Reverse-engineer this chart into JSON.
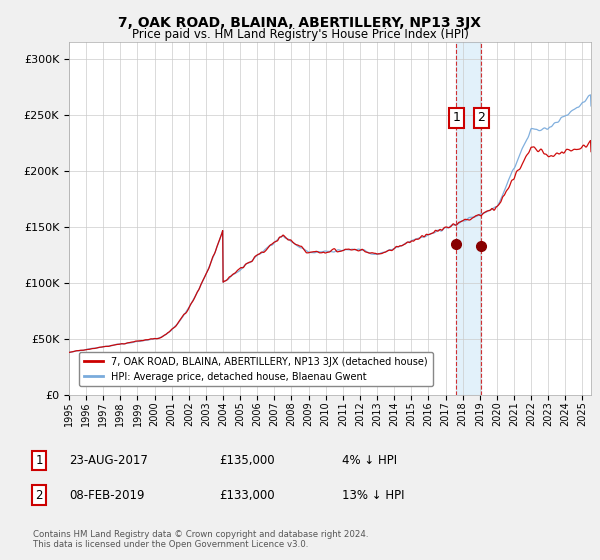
{
  "title": "7, OAK ROAD, BLAINA, ABERTILLERY, NP13 3JX",
  "subtitle": "Price paid vs. HM Land Registry's House Price Index (HPI)",
  "ytick_values": [
    0,
    50000,
    100000,
    150000,
    200000,
    250000,
    300000
  ],
  "ylim": [
    0,
    315000
  ],
  "xlim_start": 1995.0,
  "xlim_end": 2025.5,
  "sale1_date": 2017.64,
  "sale1_price": 135000,
  "sale1_label": "1",
  "sale1_hpi_diff": "4% ↓ HPI",
  "sale1_date_str": "23-AUG-2017",
  "sale2_date": 2019.1,
  "sale2_price": 133000,
  "sale2_label": "2",
  "sale2_hpi_diff": "13% ↓ HPI",
  "sale2_date_str": "08-FEB-2019",
  "line_color_red": "#cc0000",
  "line_color_blue": "#7aabdc",
  "legend_label_red": "7, OAK ROAD, BLAINA, ABERTILLERY, NP13 3JX (detached house)",
  "legend_label_blue": "HPI: Average price, detached house, Blaenau Gwent",
  "footnote1": "Contains HM Land Registry data © Crown copyright and database right 2024.",
  "footnote2": "This data is licensed under the Open Government Licence v3.0.",
  "background_color": "#f0f0f0",
  "plot_bg_color": "#ffffff"
}
